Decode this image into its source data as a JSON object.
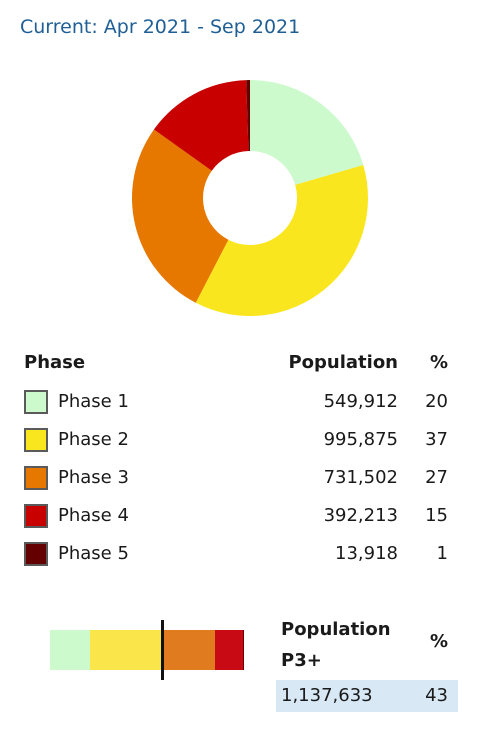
{
  "header": {
    "period": "Current: Apr 2021 - Sep 2021"
  },
  "table": {
    "col_phase": "Phase",
    "col_population": "Population",
    "col_pct": "%"
  },
  "summary": {
    "label": "Population P3+",
    "pct_label": "%",
    "population": "1,137,633",
    "pct": "43"
  },
  "chart_data": {
    "type": "pie",
    "style": "donut",
    "categories": [
      "Phase 1",
      "Phase 2",
      "Phase 3",
      "Phase 4",
      "Phase 5"
    ],
    "values": [
      549912,
      995875,
      731502,
      392213,
      13918
    ],
    "value_labels": [
      "549,912",
      "995,875",
      "731,502",
      "392,213",
      "13,918"
    ],
    "percentages": [
      20,
      37,
      27,
      15,
      1
    ],
    "colors": [
      "#cdfacd",
      "#fae61e",
      "#e67800",
      "#c80000",
      "#640000"
    ],
    "bar_colors": [
      "#cdfacd",
      "#fae64b",
      "#e07b1f",
      "#c80a14",
      "#640000"
    ],
    "p3_threshold_index": 2
  }
}
